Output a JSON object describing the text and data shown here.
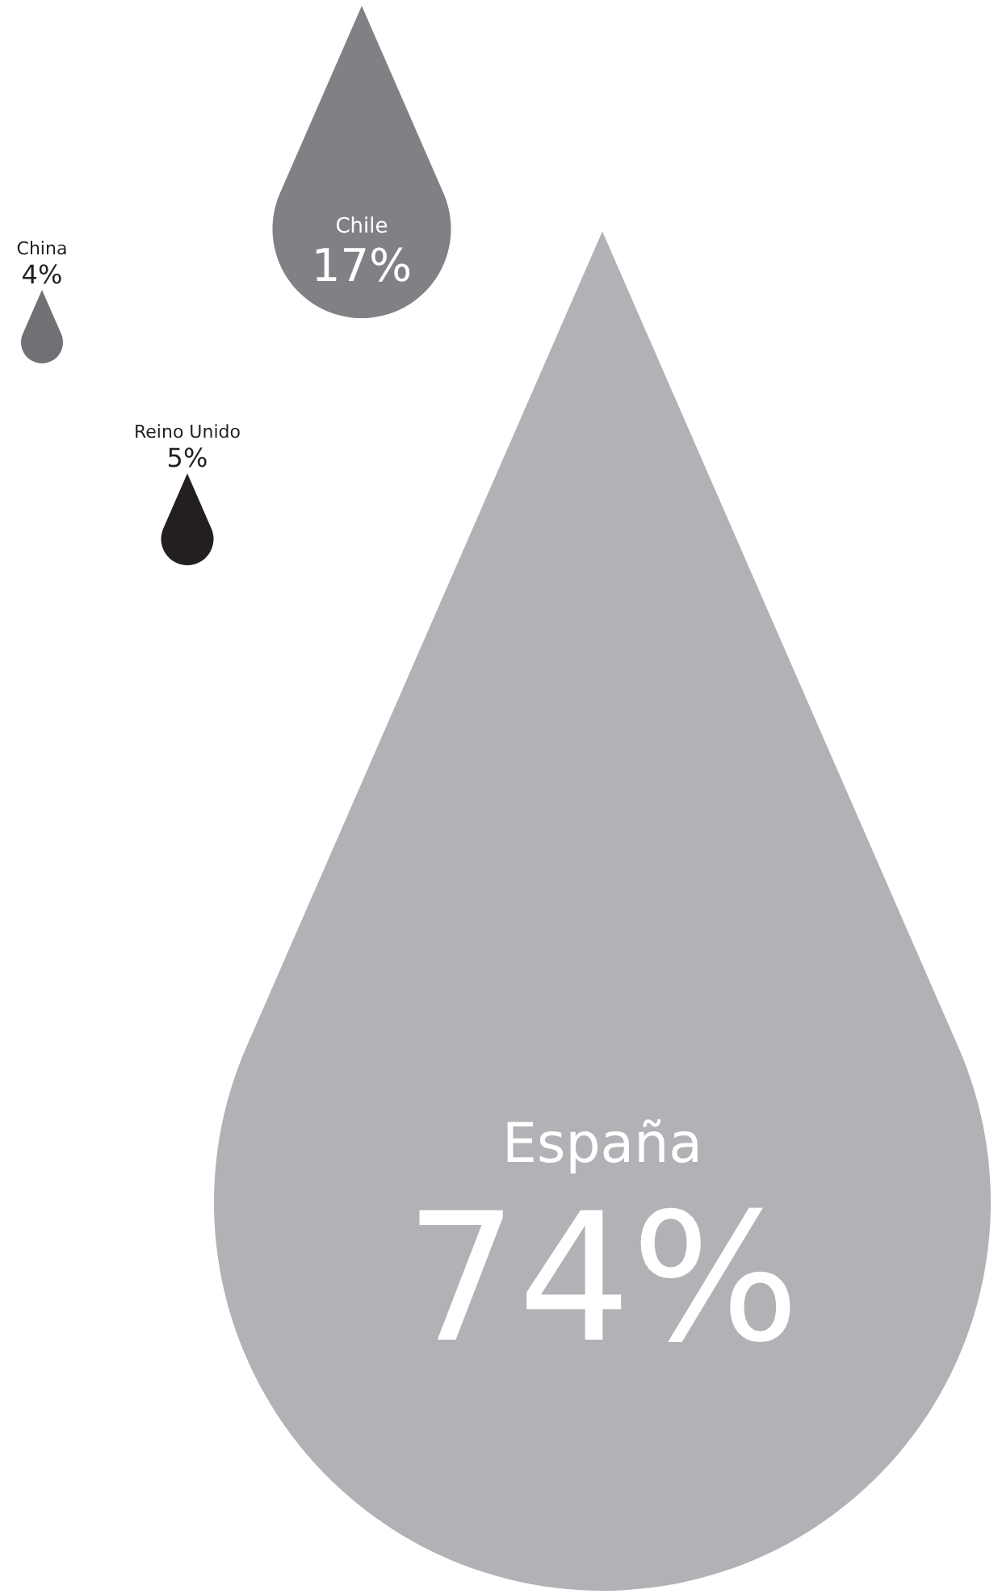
{
  "chart_data": {
    "type": "other",
    "categories": [
      "China",
      "Chile",
      "Reino Unido",
      "España"
    ],
    "values": [
      4,
      17,
      5,
      74
    ],
    "value_labels": [
      "4%",
      "17%",
      "5%",
      "74%"
    ],
    "colors": [
      "#707174",
      "#808185",
      "#231f20",
      "#b1b2b6"
    ]
  }
}
